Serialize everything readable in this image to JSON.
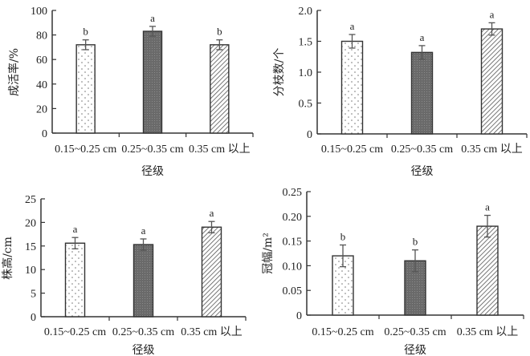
{
  "chart_data": [
    {
      "type": "bar",
      "categories": [
        "0.15~0.25 cm",
        "0.25~0.35 cm",
        "0.35 cm 以上"
      ],
      "values": [
        72,
        83,
        72
      ],
      "errors": [
        4,
        4,
        4
      ],
      "significance": [
        "b",
        "a",
        "b"
      ],
      "xlabel": "径级",
      "ylabel": "成活率/%",
      "ylim": [
        0,
        100
      ],
      "yticks": [
        0,
        20,
        40,
        60,
        80,
        100
      ],
      "ytick_labels": [
        "0",
        "20",
        "40",
        "60",
        "80",
        "100"
      ],
      "grid": false
    },
    {
      "type": "bar",
      "categories": [
        "0.15~0.25 cm",
        "0.25~0.35 cm",
        "0.35 cm 以上"
      ],
      "values": [
        1.5,
        1.32,
        1.7
      ],
      "errors": [
        0.11,
        0.11,
        0.1
      ],
      "significance": [
        "a",
        "a",
        "a"
      ],
      "xlabel": "径级",
      "ylabel": "分枝数/个",
      "ylim": [
        0,
        2.0
      ],
      "yticks": [
        0,
        0.5,
        1.0,
        1.5,
        2.0
      ],
      "ytick_labels": [
        "0",
        "0.5",
        "1.0",
        "1.5",
        "2.0"
      ],
      "grid": false
    },
    {
      "type": "bar",
      "categories": [
        "0.15~0.25 cm",
        "0.25~0.35 cm",
        "0.35 cm 以上"
      ],
      "values": [
        15.6,
        15.3,
        19.0
      ],
      "errors": [
        1.2,
        1.2,
        1.2
      ],
      "significance": [
        "a",
        "a",
        "a"
      ],
      "xlabel": "径级",
      "ylabel": "株高/cm",
      "ylim": [
        0,
        25
      ],
      "yticks": [
        0,
        5,
        10,
        15,
        20,
        25
      ],
      "ytick_labels": [
        "0",
        "5",
        "10",
        "15",
        "20",
        "25"
      ],
      "grid": false
    },
    {
      "type": "bar",
      "categories": [
        "0.15~0.25 cm",
        "0.25~0.35 cm",
        "0.35 cm 以上"
      ],
      "values": [
        0.12,
        0.11,
        0.18
      ],
      "errors": [
        0.022,
        0.022,
        0.022
      ],
      "significance": [
        "b",
        "b",
        "a"
      ],
      "xlabel": "径级",
      "ylabel": "冠幅/m²",
      "ylim": [
        0,
        0.25
      ],
      "yticks": [
        0,
        0.05,
        0.1,
        0.15,
        0.2,
        0.25
      ],
      "ytick_labels": [
        "0",
        "0.05",
        "0.10",
        "0.15",
        "0.20",
        "0.25"
      ],
      "grid": false
    }
  ],
  "styles": {
    "axis_color": "#333333",
    "bar_fills": [
      "dots",
      "dark-grey",
      "diagonal-hatch"
    ],
    "dark_fill": "#6a6a6a",
    "error_color": "#555555"
  }
}
